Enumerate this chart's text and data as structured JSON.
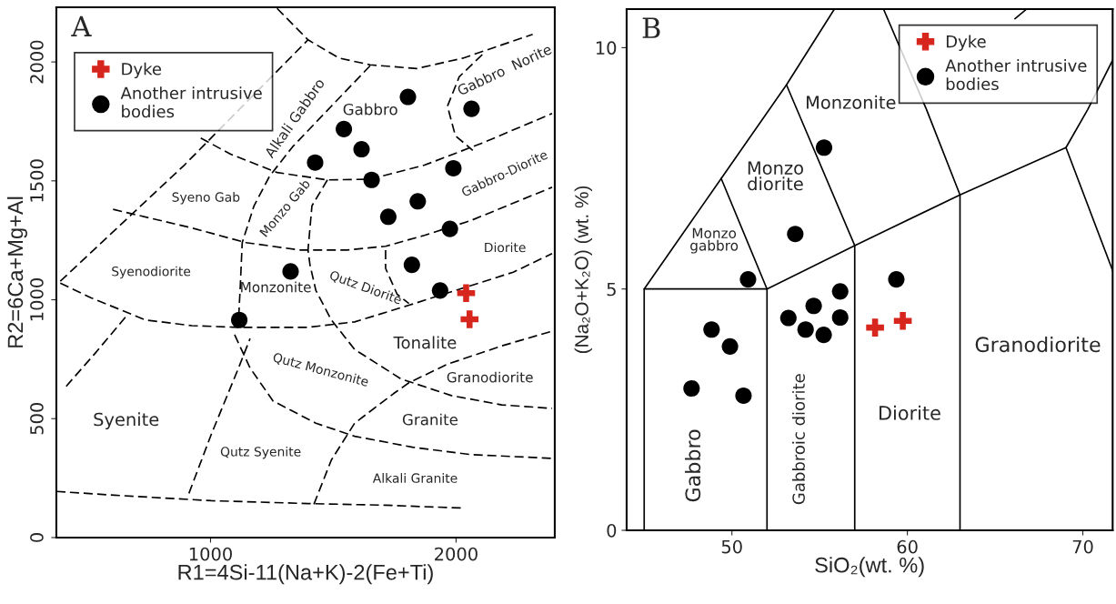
{
  "chart_data": [
    {
      "type": "scatter",
      "title": "A",
      "xlabel": "R1=4Si-11(Na+K)-2(Fe+Ti)",
      "ylabel": "R2=6Ca+Mg+Al",
      "xlim": [
        372,
        2402
      ],
      "ylim": [
        0,
        2230
      ],
      "xticks": [
        1000,
        2000
      ],
      "yticks": [
        0,
        500,
        1000,
        1500,
        2000
      ],
      "legend": "top left",
      "series": [
        {
          "name": "Dyke",
          "color": "#d7261e",
          "marker": "cross",
          "x": [
            2041,
            2055
          ],
          "values": [
            1028,
            918
          ]
        },
        {
          "name": "Another intrusive\nbodies",
          "color": "#000000",
          "marker": "circle",
          "x": [
            1804,
            2063,
            1543,
            1615,
            1426,
            1656,
            1989,
            1844,
            1724,
            1975,
            1820,
            1935,
            1326,
            1117
          ],
          "values": [
            1853,
            1803,
            1718,
            1633,
            1577,
            1504,
            1553,
            1414,
            1349,
            1298,
            1147,
            1039,
            1119,
            915
          ]
        },
        {
          "type": "line",
          "color": "#000000",
          "line_style": "dashed",
          "marker": "none",
          "x": [
            1271,
            1397,
            1524,
            1650,
            1839,
            2028,
            2312
          ],
          "values": [
            2225,
            2093,
            2016,
            1988,
            1972,
            2016,
            2116
          ]
        },
        {
          "type": "line",
          "color": "#000000",
          "line_style": "dashed",
          "marker": "none",
          "x": [
            2107,
            2013,
            1965,
            1997,
            2068
          ],
          "values": [
            2031,
            1938,
            1814,
            1690,
            1628
          ]
        },
        {
          "type": "line",
          "color": "#000000",
          "line_style": "dashed",
          "marker": "none",
          "x": [
            960,
            1082,
            1271,
            1476,
            1650,
            1871,
            2107,
            2391
          ],
          "values": [
            1680,
            1612,
            1535,
            1504,
            1507,
            1566,
            1659,
            1783
          ]
        },
        {
          "type": "line",
          "color": "#000000",
          "line_style": "dashed",
          "marker": "none",
          "x": [
            603,
            924,
            1145,
            1366,
            1555,
            1713,
            1871,
            2060,
            2391
          ],
          "values": [
            1380,
            1302,
            1240,
            1209,
            1209,
            1225,
            1271,
            1333,
            1473
          ]
        },
        {
          "type": "line",
          "color": "#000000",
          "line_style": "dashed",
          "marker": "none",
          "x": [
            388,
            514,
            735,
            924,
            1114,
            1397,
            1587,
            1808,
            2233,
            2391
          ],
          "values": [
            1070,
            1008,
            915,
            891,
            884,
            884,
            907,
            977,
            1116,
            1194
          ]
        },
        {
          "type": "line",
          "color": "#000000",
          "line_style": "dashed",
          "marker": "none",
          "x": [
            388,
            893,
            1397
          ],
          "values": [
            1078,
            1566,
            2093
          ]
        },
        {
          "type": "line",
          "color": "#000000",
          "line_style": "dashed",
          "marker": "none",
          "x": [
            1650,
            1492,
            1334,
            1240,
            1177,
            1129,
            1121,
            1114
          ],
          "values": [
            1984,
            1814,
            1643,
            1519,
            1395,
            1240,
            1054,
            915
          ]
        },
        {
          "type": "line",
          "color": "#000000",
          "line_style": "dashed",
          "marker": "none",
          "x": [
            1476,
            1413,
            1397,
            1405,
            1429,
            1492,
            1587,
            1776,
            1981,
            2186,
            2391
          ],
          "values": [
            1504,
            1395,
            1209,
            1147,
            1039,
            915,
            791,
            667,
            597,
            558,
            543
          ]
        },
        {
          "type": "line",
          "color": "#000000",
          "line_style": "dashed",
          "marker": "none",
          "x": [
            1713,
            1713,
            1760,
            1808
          ],
          "values": [
            1209,
            1132,
            1023,
            984
          ]
        },
        {
          "type": "line",
          "color": "#000000",
          "line_style": "dashed",
          "marker": "none",
          "x": [
            1421,
            1492,
            1587,
            1745,
            1808,
            1965,
            2186,
            2391
          ],
          "values": [
            140,
            326,
            481,
            605,
            651,
            729,
            806,
            868
          ]
        },
        {
          "type": "line",
          "color": "#000000",
          "line_style": "dashed",
          "marker": "none",
          "x": [
            1098,
            1161,
            1255,
            1429,
            1587,
            1823,
            2060,
            2391
          ],
          "values": [
            853,
            713,
            574,
            481,
            426,
            380,
            349,
            333
          ]
        },
        {
          "type": "line",
          "color": "#000000",
          "line_style": "dashed",
          "marker": "none",
          "x": [
            912,
            1003,
            1114,
            1161
          ],
          "values": [
            186,
            434,
            713,
            837
          ]
        },
        {
          "type": "line",
          "color": "#000000",
          "line_style": "dashed",
          "marker": "none",
          "x": [
            412,
            530,
            656
          ],
          "values": [
            636,
            775,
            930
          ]
        },
        {
          "type": "line",
          "color": "#000000",
          "line_style": "dashed",
          "marker": "none",
          "x": [
            372,
            609,
            1003,
            1397,
            1713,
            2028
          ],
          "values": [
            194,
            178,
            155,
            143,
            136,
            124
          ]
        }
      ],
      "annotations": [
        "Alkali Gabbro",
        "Gabbro",
        "Gabbro  Norite",
        "Gabbro-Diorite",
        "Syeno Gab",
        "Monzo Gab",
        "Diorite",
        "Syenodiorite",
        "Monzonite",
        "Qutz Diorite",
        "Tonalite",
        "Granodiorite",
        "Qutz Monzonite",
        "Syenite",
        "Granite",
        "Qutz Syenite",
        "Alkali Granite"
      ]
    },
    {
      "type": "scatter",
      "title": "B",
      "xlabel": "SiO₂(wt. %)",
      "ylabel": "(Na₂O+K₂O) (wt. %)",
      "xlim": [
        44,
        71.7
      ],
      "ylim": [
        0,
        10.8
      ],
      "xticks": [
        50,
        60,
        70
      ],
      "yticks": [
        0,
        5,
        10
      ],
      "legend": "top right",
      "series": [
        {
          "name": "Dyke",
          "color": "#d7261e",
          "marker": "cross",
          "x": [
            58.16,
            59.74
          ],
          "values": [
            4.2,
            4.34
          ]
        },
        {
          "name": "Another intrusive\nbodies",
          "color": "#000000",
          "marker": "circle",
          "x": [
            55.25,
            53.61,
            50.92,
            59.37,
            56.17,
            54.66,
            53.22,
            56.17,
            54.2,
            55.23,
            48.84,
            49.89,
            47.7,
            50.66
          ],
          "values": [
            7.93,
            6.14,
            5.2,
            5.2,
            4.95,
            4.65,
            4.4,
            4.41,
            4.16,
            4.05,
            4.16,
            3.81,
            2.94,
            2.79
          ]
        },
        {
          "type": "line",
          "color": "#000000",
          "line_style": "solid",
          "marker": "none",
          "x": [
            45,
            45,
            52,
            52
          ],
          "values": [
            0,
            5,
            5,
            0
          ]
        },
        {
          "type": "line",
          "color": "#000000",
          "line_style": "solid",
          "marker": "none",
          "x": [
            45,
            49.39,
            53.11,
            55.84
          ],
          "values": [
            5,
            7.29,
            9.23,
            10.8
          ]
        },
        {
          "type": "line",
          "color": "#000000",
          "line_style": "solid",
          "marker": "none",
          "x": [
            49.39,
            52
          ],
          "values": [
            7.29,
            5
          ]
        },
        {
          "type": "line",
          "color": "#000000",
          "line_style": "solid",
          "marker": "none",
          "x": [
            53.11,
            57,
            57
          ],
          "values": [
            9.23,
            5.9,
            0
          ]
        },
        {
          "type": "line",
          "color": "#000000",
          "line_style": "solid",
          "marker": "none",
          "x": [
            52,
            57,
            63,
            69.04,
            70.28,
            71.7
          ],
          "values": [
            5,
            5.9,
            6.95,
            7.93,
            8.72,
            9.74
          ]
        },
        {
          "type": "line",
          "color": "#000000",
          "line_style": "solid",
          "marker": "none",
          "x": [
            58.64,
            61.09,
            63,
            63
          ],
          "values": [
            10.8,
            8.72,
            6.95,
            0
          ]
        },
        {
          "type": "line",
          "color": "#000000",
          "line_style": "solid",
          "marker": "none",
          "x": [
            69.04,
            71.7
          ],
          "values": [
            7.93,
            5.38
          ]
        },
        {
          "type": "line",
          "color": "#000000",
          "line_style": "solid",
          "marker": "none",
          "x": [
            66.13,
            66.8
          ],
          "values": [
            10.6,
            10.8
          ]
        }
      ],
      "annotations": [
        "Monzonite",
        "Monzo\ndiorite",
        "Monzo\ngabbro",
        "Gabbro",
        "Gabbroic diorite",
        "Diorite",
        "Granodiorite"
      ]
    }
  ]
}
